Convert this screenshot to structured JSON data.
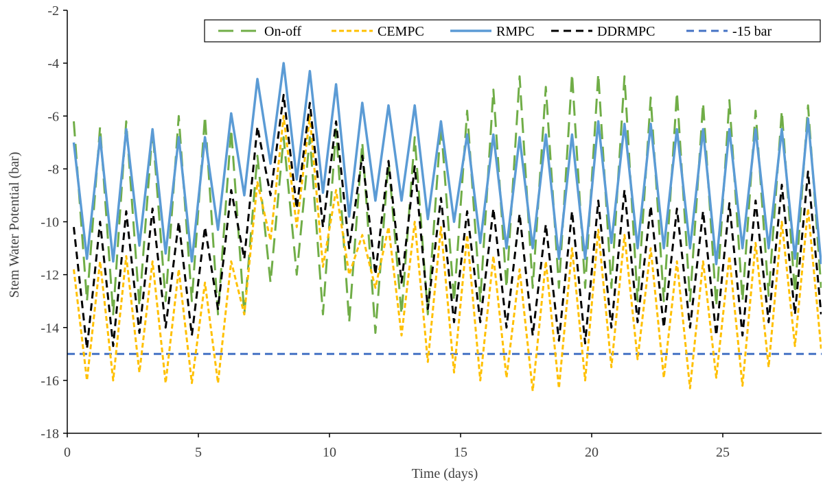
{
  "chart_data": {
    "type": "line",
    "title": "",
    "xlabel": "Time (days)",
    "ylabel": "Stem Water Potential (bar)",
    "xlim": [
      0,
      29
    ],
    "ylim": [
      -18,
      -2
    ],
    "x_ticks": [
      0,
      5,
      10,
      15,
      20,
      25
    ],
    "y_ticks": [
      -18,
      -16,
      -14,
      -12,
      -10,
      -8,
      -6,
      -4,
      -2
    ],
    "grid": false,
    "legend_position": "top-right",
    "series": [
      {
        "name": "On-off",
        "color": "#70AD47",
        "dash": "long-dash",
        "peak_x": [
          0.25,
          1.25,
          2.25,
          3.25,
          4.25,
          5.25,
          6.25,
          7.25,
          8.25,
          9.25,
          10.25,
          11.25,
          12.25,
          13.25,
          14.25,
          15.25,
          16.25,
          17.25,
          18.25,
          19.25,
          20.25,
          21.25,
          22.25,
          23.25,
          24.25,
          25.25,
          26.25,
          27.25,
          28.25
        ],
        "peaks": [
          -6.2,
          -6.4,
          -6.2,
          -6.5,
          -6.0,
          -6.0,
          -6.5,
          -7.5,
          -6.8,
          -6.8,
          -6.5,
          -7.0,
          -7.7,
          -6.8,
          -6.3,
          -5.8,
          -5.0,
          -4.5,
          -4.9,
          -4.4,
          -4.4,
          -4.5,
          -5.3,
          -5.1,
          -5.5,
          -5.4,
          -5.8,
          -5.8,
          -5.6
        ],
        "trough_x": [
          0.75,
          1.75,
          2.75,
          3.75,
          4.75,
          5.75,
          6.75,
          7.75,
          8.75,
          9.75,
          10.75,
          11.75,
          12.75,
          13.75,
          14.75,
          15.75,
          16.75,
          17.75,
          18.75,
          19.75,
          20.75,
          21.75,
          22.75,
          23.75,
          24.75,
          25.75,
          26.75,
          27.75,
          28.75
        ],
        "troughs": [
          -13.0,
          -13.5,
          -13.2,
          -13.0,
          -13.0,
          -13.5,
          -13.5,
          -12.3,
          -12.0,
          -13.5,
          -13.8,
          -14.2,
          -13.5,
          -13.5,
          -13.0,
          -13.0,
          -12.5,
          -12.5,
          -12.5,
          -12.5,
          -12.5,
          -13.0,
          -13.0,
          -13.0,
          -13.2,
          -13.0,
          -12.8,
          -12.7,
          -12.5
        ]
      },
      {
        "name": "CEMPC",
        "color": "#FFC000",
        "dash": "short-dash",
        "peak_x": [
          0.25,
          1.25,
          2.25,
          3.25,
          4.25,
          5.25,
          6.25,
          7.25,
          8.25,
          9.25,
          10.25,
          11.25,
          12.25,
          13.25,
          14.25,
          15.25,
          16.25,
          17.25,
          18.25,
          19.25,
          20.25,
          21.25,
          22.25,
          23.25,
          24.25,
          25.25,
          26.25,
          27.25,
          28.25
        ],
        "peaks": [
          -11.8,
          -11.5,
          -11.3,
          -11.5,
          -11.8,
          -12.3,
          -11.5,
          -8.5,
          -6.0,
          -6.0,
          -8.8,
          -10.5,
          -10.2,
          -10.0,
          -10.2,
          -10.5,
          -11.3,
          -11.8,
          -11.5,
          -11.0,
          -10.3,
          -10.5,
          -11.0,
          -11.5,
          -11.5,
          -11.3,
          -10.8,
          -10.0,
          -9.5
        ],
        "trough_x": [
          0.75,
          1.75,
          2.75,
          3.75,
          4.75,
          5.75,
          6.75,
          7.75,
          8.75,
          9.75,
          10.75,
          11.75,
          12.75,
          13.75,
          14.75,
          15.75,
          16.75,
          17.75,
          18.75,
          19.75,
          20.75,
          21.75,
          22.75,
          23.75,
          24.75,
          25.75,
          26.75,
          27.75,
          28.75
        ],
        "troughs": [
          -16.0,
          -16.0,
          -15.7,
          -16.1,
          -16.1,
          -16.1,
          -13.5,
          -10.7,
          -10.2,
          -11.7,
          -12.0,
          -12.5,
          -14.3,
          -15.3,
          -15.7,
          -16.0,
          -15.9,
          -16.4,
          -16.3,
          -16.0,
          -15.5,
          -15.2,
          -15.9,
          -16.3,
          -15.9,
          -16.2,
          -15.5,
          -14.7,
          -14.8
        ]
      },
      {
        "name": "RMPC",
        "color": "#5B9BD5",
        "dash": "solid",
        "peak_x": [
          0.25,
          1.25,
          2.25,
          3.25,
          4.25,
          5.25,
          6.25,
          7.25,
          8.25,
          9.25,
          10.25,
          11.25,
          12.25,
          13.25,
          14.25,
          15.25,
          16.25,
          17.25,
          18.25,
          19.25,
          20.25,
          21.25,
          22.25,
          23.25,
          24.25,
          25.25,
          26.25,
          27.25,
          28.25
        ],
        "peaks": [
          -7.0,
          -6.8,
          -6.5,
          -6.5,
          -6.8,
          -6.8,
          -5.9,
          -4.6,
          -4.0,
          -4.3,
          -4.8,
          -5.5,
          -5.6,
          -5.6,
          -6.2,
          -6.7,
          -6.7,
          -6.8,
          -6.7,
          -6.7,
          -6.2,
          -6.3,
          -6.3,
          -6.5,
          -6.5,
          -6.5,
          -6.5,
          -6.5,
          -6.1
        ],
        "trough_x": [
          0.75,
          1.75,
          2.75,
          3.75,
          4.75,
          5.75,
          6.75,
          7.75,
          8.75,
          9.75,
          10.75,
          11.75,
          12.75,
          13.75,
          14.75,
          15.75,
          16.75,
          17.75,
          18.75,
          19.75,
          20.75,
          21.75,
          22.75,
          23.75,
          24.75,
          25.75,
          26.75,
          27.75,
          28.75
        ],
        "troughs": [
          -11.4,
          -11.5,
          -10.9,
          -11.2,
          -11.5,
          -10.3,
          -9.0,
          -7.8,
          -8.4,
          -8.9,
          -9.8,
          -9.2,
          -9.2,
          -9.9,
          -10.0,
          -10.8,
          -11.0,
          -11.0,
          -11.4,
          -11.4,
          -10.8,
          -11.0,
          -11.0,
          -11.0,
          -11.6,
          -11.0,
          -11.0,
          -11.4,
          -11.6
        ]
      },
      {
        "name": "DDRMPC",
        "color": "#000000",
        "dash": "dash",
        "peak_x": [
          0.25,
          1.25,
          2.25,
          3.25,
          4.25,
          5.25,
          6.25,
          7.25,
          8.25,
          9.25,
          10.25,
          11.25,
          12.25,
          13.25,
          14.25,
          15.25,
          16.25,
          17.25,
          18.25,
          19.25,
          20.25,
          21.25,
          22.25,
          23.25,
          24.25,
          25.25,
          26.25,
          27.25,
          28.25
        ],
        "peaks": [
          -10.2,
          -10.0,
          -9.6,
          -9.5,
          -10.0,
          -10.2,
          -8.8,
          -6.4,
          -5.2,
          -5.5,
          -6.2,
          -7.5,
          -7.7,
          -7.9,
          -9.1,
          -9.6,
          -9.5,
          -9.7,
          -10.1,
          -9.6,
          -9.2,
          -8.8,
          -9.4,
          -9.5,
          -9.6,
          -9.3,
          -9.2,
          -8.6,
          -8.1
        ],
        "trough_x": [
          0.75,
          1.75,
          2.75,
          3.75,
          4.75,
          5.75,
          6.75,
          7.75,
          8.75,
          9.75,
          10.75,
          11.75,
          12.75,
          13.75,
          14.75,
          15.75,
          16.75,
          17.75,
          18.75,
          19.75,
          20.75,
          21.75,
          22.75,
          23.75,
          24.75,
          25.75,
          26.75,
          27.75,
          28.75
        ],
        "troughs": [
          -14.8,
          -14.7,
          -14.2,
          -14.0,
          -14.3,
          -13.3,
          -11.4,
          -9.0,
          -9.5,
          -10.2,
          -11.0,
          -12.0,
          -12.3,
          -13.3,
          -13.8,
          -13.8,
          -14.0,
          -14.3,
          -14.5,
          -14.6,
          -14.0,
          -13.8,
          -14.0,
          -14.0,
          -14.3,
          -14.3,
          -13.8,
          -13.5,
          -13.5
        ]
      },
      {
        "name": "-15 bar",
        "color": "#4472C4",
        "dash": "dash",
        "x": [
          0,
          29
        ],
        "values": [
          -15,
          -15
        ]
      }
    ]
  }
}
